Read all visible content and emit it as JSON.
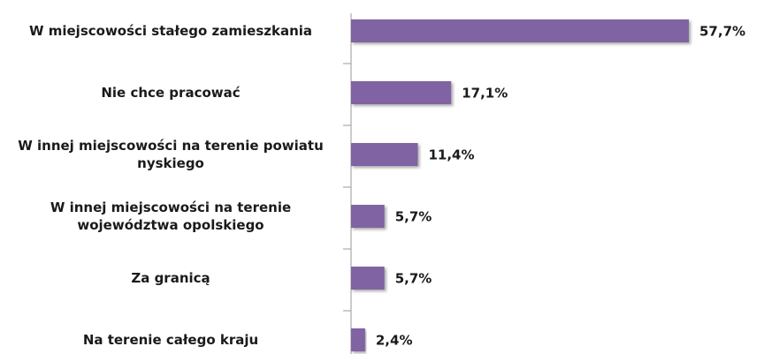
{
  "chart_data": {
    "type": "bar",
    "orientation": "horizontal",
    "categories": [
      "W miejscowości stałego zamieszkania",
      "Nie chce pracować",
      "W innej miejscowości na terenie powiatu nyskiego",
      "W innej miejscowości na terenie województwa opolskiego",
      "Za granicą",
      "Na terenie całego kraju"
    ],
    "values": [
      57.7,
      17.1,
      11.4,
      5.7,
      5.7,
      2.4
    ],
    "value_labels": [
      "57,7%",
      "17,1%",
      "11,4%",
      "5,7%",
      "5,7%",
      "2,4%"
    ],
    "color": "#8064a2"
  }
}
